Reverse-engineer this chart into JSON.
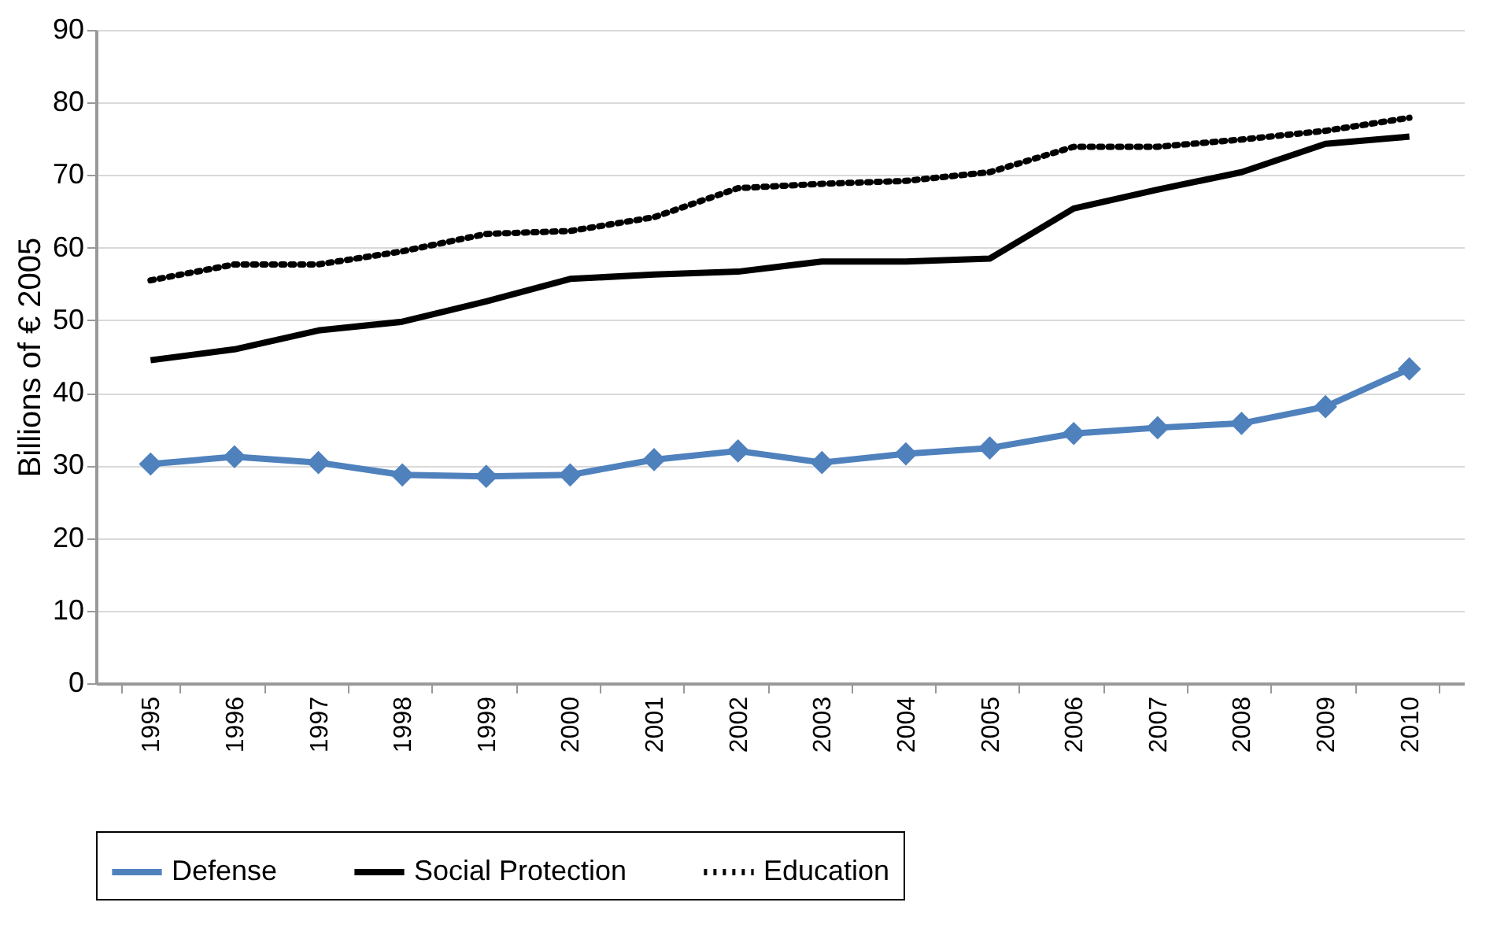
{
  "chart_data": {
    "type": "line",
    "ylabel": "Billions of € 2005",
    "categories": [
      "1995",
      "1996",
      "1997",
      "1998",
      "1999",
      "2000",
      "2001",
      "2002",
      "2003",
      "2004",
      "2005",
      "2006",
      "2007",
      "2008",
      "2009",
      "2010"
    ],
    "series": [
      {
        "name": "Defense",
        "color": "#4f81bd",
        "marker": "diamond",
        "line_style": "solid",
        "values": [
          30.2,
          31.2,
          30.4,
          28.7,
          28.5,
          28.7,
          30.8,
          32.0,
          30.4,
          31.6,
          32.4,
          34.4,
          35.2,
          35.8,
          38.1,
          43.3
        ]
      },
      {
        "name": "Social Protection",
        "color": "#000000",
        "marker": "none",
        "line_style": "solid",
        "values": [
          44.5,
          46.0,
          48.6,
          49.8,
          52.6,
          55.7,
          56.3,
          56.7,
          58.1,
          58.1,
          58.5,
          65.4,
          68.0,
          70.4,
          74.3,
          75.3
        ]
      },
      {
        "name": "Education",
        "color": "#000000",
        "marker": "none",
        "line_style": "dotted",
        "values": [
          55.5,
          57.7,
          57.7,
          59.5,
          61.9,
          62.3,
          64.2,
          68.2,
          68.8,
          69.2,
          70.4,
          73.9,
          73.9,
          74.9,
          76.1,
          77.9
        ]
      }
    ],
    "ylim": [
      0,
      90
    ],
    "yticks": [
      0,
      10,
      20,
      30,
      40,
      50,
      60,
      70,
      80,
      90
    ],
    "grid": "y",
    "legend": "bottom"
  }
}
